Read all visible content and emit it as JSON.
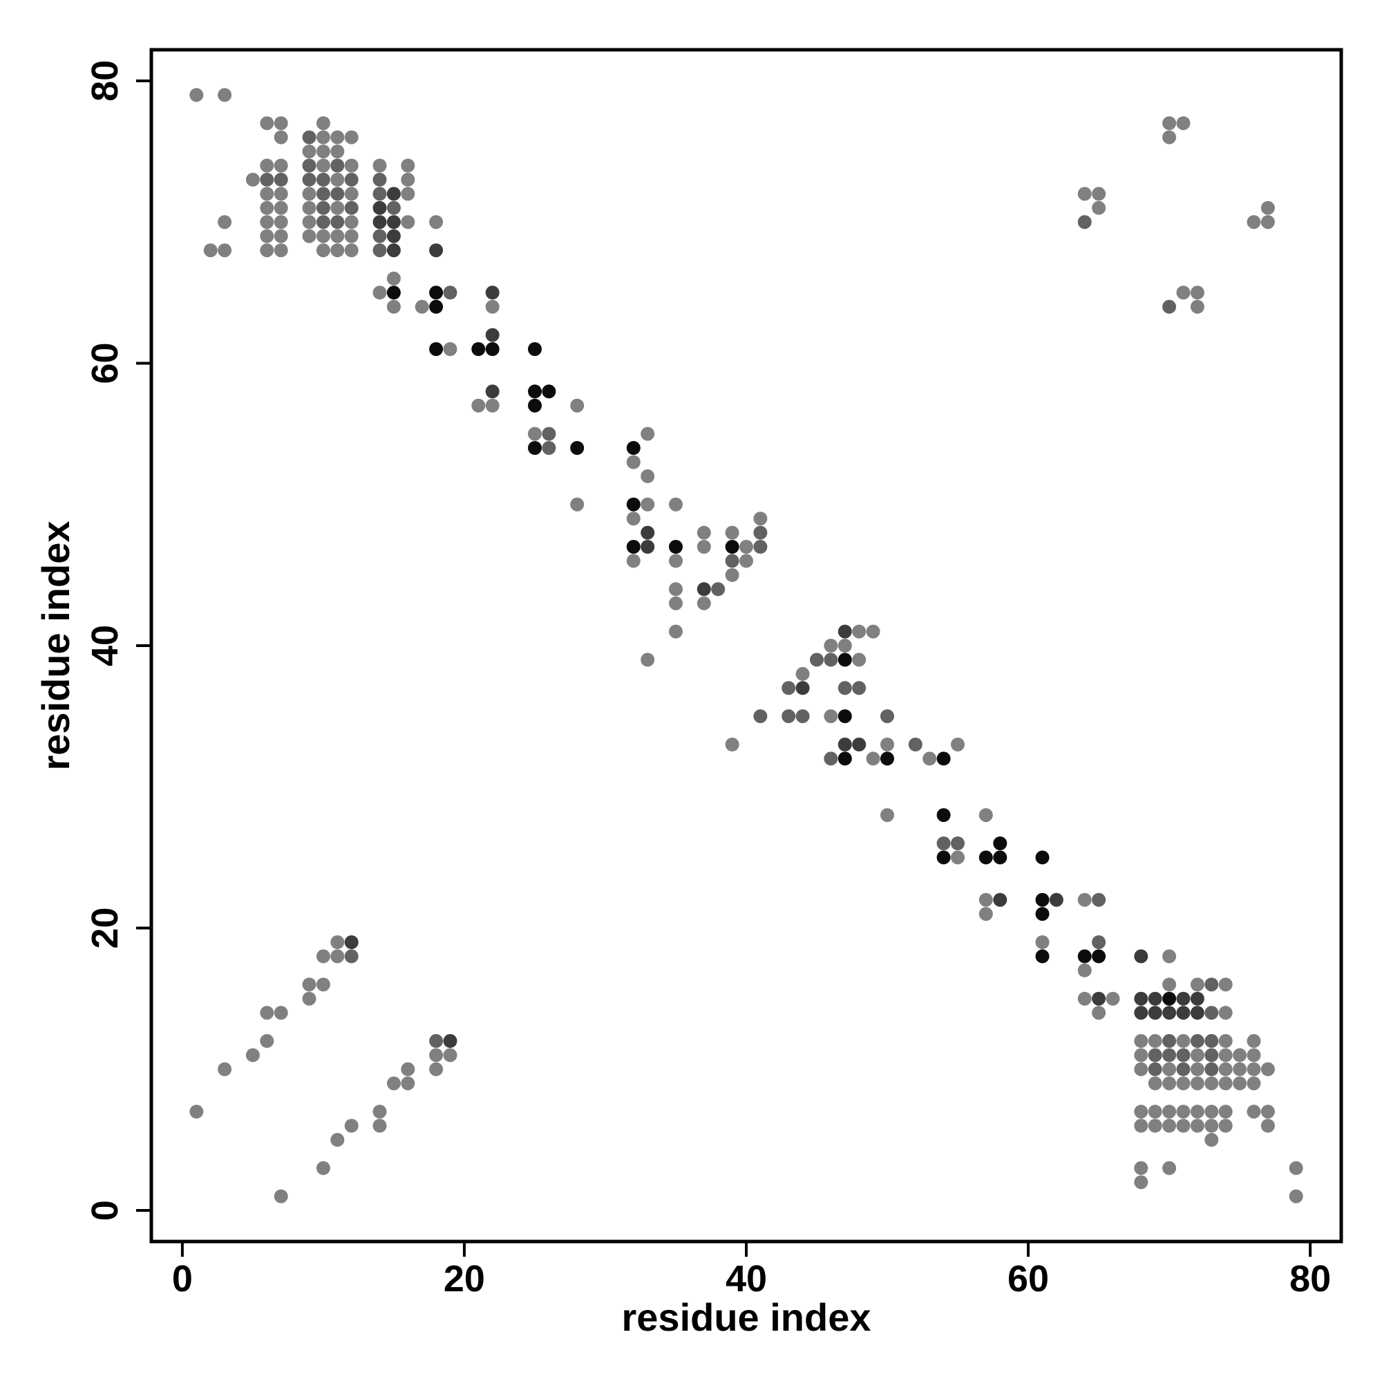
{
  "chart_data": {
    "type": "scatter",
    "title": "",
    "xlabel": "residue index",
    "ylabel": "residue index",
    "xlim": [
      -2.2,
      82.2
    ],
    "ylim": [
      -2.2,
      82.2
    ],
    "xticks": [
      0,
      20,
      40,
      60,
      80
    ],
    "yticks": [
      0,
      20,
      40,
      60,
      80
    ],
    "xtick_labels": [
      "0",
      "20",
      "40",
      "60",
      "80"
    ],
    "ytick_labels": [
      "0",
      "20",
      "40",
      "60",
      "80"
    ],
    "grid": false,
    "legend": "none",
    "marker_colors": {
      "light": "#808080",
      "medium": "#626262",
      "dark": "#3c3c3c",
      "black": "#0c0c0c"
    },
    "points": [
      [
        1,
        79,
        "light"
      ],
      [
        3,
        79,
        "light"
      ],
      [
        6,
        77,
        "light"
      ],
      [
        7,
        77,
        "light"
      ],
      [
        7,
        76,
        "light"
      ],
      [
        10,
        77,
        "light"
      ],
      [
        9,
        76,
        "medium"
      ],
      [
        10,
        76,
        "light"
      ],
      [
        11,
        76,
        "light"
      ],
      [
        12,
        76,
        "light"
      ],
      [
        9,
        75,
        "light"
      ],
      [
        10,
        75,
        "light"
      ],
      [
        11,
        75,
        "light"
      ],
      [
        6,
        74,
        "light"
      ],
      [
        7,
        74,
        "light"
      ],
      [
        9,
        74,
        "medium"
      ],
      [
        10,
        74,
        "light"
      ],
      [
        11,
        74,
        "medium"
      ],
      [
        12,
        74,
        "light"
      ],
      [
        14,
        74,
        "light"
      ],
      [
        16,
        74,
        "light"
      ],
      [
        5,
        73,
        "light"
      ],
      [
        6,
        73,
        "medium"
      ],
      [
        7,
        73,
        "medium"
      ],
      [
        9,
        73,
        "medium"
      ],
      [
        10,
        73,
        "medium"
      ],
      [
        11,
        73,
        "light"
      ],
      [
        12,
        73,
        "medium"
      ],
      [
        14,
        73,
        "medium"
      ],
      [
        16,
        73,
        "light"
      ],
      [
        6,
        72,
        "light"
      ],
      [
        7,
        72,
        "light"
      ],
      [
        9,
        72,
        "light"
      ],
      [
        10,
        72,
        "medium"
      ],
      [
        11,
        72,
        "medium"
      ],
      [
        12,
        72,
        "light"
      ],
      [
        14,
        72,
        "medium"
      ],
      [
        15,
        72,
        "dark"
      ],
      [
        16,
        72,
        "light"
      ],
      [
        6,
        71,
        "light"
      ],
      [
        7,
        71,
        "light"
      ],
      [
        9,
        71,
        "light"
      ],
      [
        10,
        71,
        "medium"
      ],
      [
        11,
        71,
        "light"
      ],
      [
        12,
        71,
        "medium"
      ],
      [
        14,
        71,
        "dark"
      ],
      [
        15,
        71,
        "medium"
      ],
      [
        3,
        70,
        "light"
      ],
      [
        6,
        70,
        "light"
      ],
      [
        7,
        70,
        "light"
      ],
      [
        9,
        70,
        "light"
      ],
      [
        10,
        70,
        "medium"
      ],
      [
        11,
        70,
        "medium"
      ],
      [
        12,
        70,
        "light"
      ],
      [
        14,
        70,
        "dark"
      ],
      [
        15,
        70,
        "dark"
      ],
      [
        16,
        70,
        "light"
      ],
      [
        18,
        70,
        "light"
      ],
      [
        6,
        69,
        "light"
      ],
      [
        7,
        69,
        "light"
      ],
      [
        9,
        69,
        "light"
      ],
      [
        10,
        69,
        "light"
      ],
      [
        11,
        69,
        "light"
      ],
      [
        12,
        69,
        "light"
      ],
      [
        14,
        69,
        "medium"
      ],
      [
        15,
        69,
        "dark"
      ],
      [
        2,
        68,
        "light"
      ],
      [
        3,
        68,
        "light"
      ],
      [
        6,
        68,
        "light"
      ],
      [
        7,
        68,
        "light"
      ],
      [
        10,
        68,
        "light"
      ],
      [
        11,
        68,
        "light"
      ],
      [
        12,
        68,
        "light"
      ],
      [
        14,
        68,
        "medium"
      ],
      [
        15,
        68,
        "dark"
      ],
      [
        18,
        68,
        "dark"
      ],
      [
        15,
        66,
        "light"
      ],
      [
        14,
        65,
        "light"
      ],
      [
        15,
        65,
        "black"
      ],
      [
        18,
        65,
        "black"
      ],
      [
        19,
        65,
        "medium"
      ],
      [
        22,
        65,
        "dark"
      ],
      [
        15,
        64,
        "light"
      ],
      [
        17,
        64,
        "light"
      ],
      [
        18,
        64,
        "black"
      ],
      [
        22,
        64,
        "light"
      ],
      [
        22,
        62,
        "dark"
      ],
      [
        18,
        61,
        "black"
      ],
      [
        19,
        61,
        "light"
      ],
      [
        21,
        61,
        "black"
      ],
      [
        22,
        61,
        "black"
      ],
      [
        25,
        61,
        "black"
      ],
      [
        22,
        58,
        "dark"
      ],
      [
        25,
        58,
        "black"
      ],
      [
        26,
        58,
        "black"
      ],
      [
        21,
        57,
        "light"
      ],
      [
        22,
        57,
        "light"
      ],
      [
        25,
        57,
        "black"
      ],
      [
        28,
        57,
        "light"
      ],
      [
        25,
        55,
        "light"
      ],
      [
        26,
        55,
        "medium"
      ],
      [
        33,
        55,
        "light"
      ],
      [
        25,
        54,
        "black"
      ],
      [
        26,
        54,
        "medium"
      ],
      [
        28,
        54,
        "black"
      ],
      [
        32,
        54,
        "black"
      ],
      [
        32,
        53,
        "light"
      ],
      [
        33,
        52,
        "light"
      ],
      [
        28,
        50,
        "light"
      ],
      [
        32,
        50,
        "black"
      ],
      [
        33,
        50,
        "light"
      ],
      [
        35,
        50,
        "light"
      ],
      [
        32,
        49,
        "light"
      ],
      [
        41,
        49,
        "light"
      ],
      [
        33,
        48,
        "dark"
      ],
      [
        37,
        48,
        "light"
      ],
      [
        39,
        48,
        "light"
      ],
      [
        41,
        48,
        "medium"
      ],
      [
        32,
        47,
        "black"
      ],
      [
        33,
        47,
        "dark"
      ],
      [
        35,
        47,
        "black"
      ],
      [
        37,
        47,
        "light"
      ],
      [
        39,
        47,
        "black"
      ],
      [
        40,
        47,
        "light"
      ],
      [
        41,
        47,
        "medium"
      ],
      [
        32,
        46,
        "light"
      ],
      [
        35,
        46,
        "light"
      ],
      [
        39,
        46,
        "medium"
      ],
      [
        40,
        46,
        "light"
      ],
      [
        39,
        45,
        "light"
      ],
      [
        35,
        44,
        "light"
      ],
      [
        37,
        44,
        "dark"
      ],
      [
        38,
        44,
        "medium"
      ],
      [
        35,
        43,
        "light"
      ],
      [
        37,
        43,
        "light"
      ],
      [
        35,
        41,
        "light"
      ],
      [
        47,
        41,
        "dark"
      ],
      [
        48,
        41,
        "light"
      ],
      [
        49,
        41,
        "light"
      ],
      [
        46,
        40,
        "light"
      ],
      [
        47,
        40,
        "light"
      ],
      [
        33,
        39,
        "light"
      ],
      [
        45,
        39,
        "medium"
      ],
      [
        46,
        39,
        "medium"
      ],
      [
        47,
        39,
        "black"
      ],
      [
        48,
        39,
        "light"
      ],
      [
        44,
        38,
        "light"
      ],
      [
        43,
        37,
        "medium"
      ],
      [
        44,
        37,
        "dark"
      ],
      [
        47,
        37,
        "medium"
      ],
      [
        48,
        37,
        "medium"
      ],
      [
        41,
        35,
        "medium"
      ],
      [
        43,
        35,
        "medium"
      ],
      [
        44,
        35,
        "medium"
      ],
      [
        46,
        35,
        "light"
      ],
      [
        47,
        35,
        "black"
      ],
      [
        50,
        35,
        "medium"
      ],
      [
        39,
        33,
        "light"
      ],
      [
        47,
        33,
        "dark"
      ],
      [
        48,
        33,
        "dark"
      ],
      [
        50,
        33,
        "light"
      ],
      [
        52,
        33,
        "medium"
      ],
      [
        55,
        33,
        "light"
      ],
      [
        46,
        32,
        "medium"
      ],
      [
        47,
        32,
        "black"
      ],
      [
        49,
        32,
        "light"
      ],
      [
        50,
        32,
        "black"
      ],
      [
        53,
        32,
        "light"
      ],
      [
        54,
        32,
        "black"
      ],
      [
        50,
        28,
        "light"
      ],
      [
        54,
        28,
        "black"
      ],
      [
        57,
        28,
        "light"
      ],
      [
        54,
        26,
        "medium"
      ],
      [
        55,
        26,
        "medium"
      ],
      [
        58,
        26,
        "black"
      ],
      [
        54,
        25,
        "black"
      ],
      [
        55,
        25,
        "light"
      ],
      [
        57,
        25,
        "black"
      ],
      [
        58,
        25,
        "black"
      ],
      [
        61,
        25,
        "black"
      ],
      [
        57,
        22,
        "light"
      ],
      [
        58,
        22,
        "dark"
      ],
      [
        61,
        22,
        "black"
      ],
      [
        62,
        22,
        "dark"
      ],
      [
        64,
        22,
        "light"
      ],
      [
        65,
        22,
        "medium"
      ],
      [
        57,
        21,
        "light"
      ],
      [
        61,
        21,
        "black"
      ],
      [
        61,
        19,
        "light"
      ],
      [
        65,
        19,
        "medium"
      ],
      [
        61,
        18,
        "black"
      ],
      [
        64,
        18,
        "black"
      ],
      [
        65,
        18,
        "black"
      ],
      [
        68,
        18,
        "dark"
      ],
      [
        70,
        18,
        "light"
      ],
      [
        64,
        17,
        "light"
      ],
      [
        70,
        16,
        "light"
      ],
      [
        72,
        16,
        "light"
      ],
      [
        73,
        16,
        "medium"
      ],
      [
        74,
        16,
        "light"
      ],
      [
        64,
        15,
        "light"
      ],
      [
        65,
        15,
        "dark"
      ],
      [
        66,
        15,
        "light"
      ],
      [
        68,
        15,
        "dark"
      ],
      [
        69,
        15,
        "dark"
      ],
      [
        70,
        15,
        "black"
      ],
      [
        71,
        15,
        "dark"
      ],
      [
        72,
        15,
        "dark"
      ],
      [
        65,
        14,
        "light"
      ],
      [
        68,
        14,
        "dark"
      ],
      [
        69,
        14,
        "dark"
      ],
      [
        70,
        14,
        "dark"
      ],
      [
        71,
        14,
        "dark"
      ],
      [
        72,
        14,
        "dark"
      ],
      [
        73,
        14,
        "medium"
      ],
      [
        74,
        14,
        "light"
      ],
      [
        68,
        12,
        "light"
      ],
      [
        69,
        12,
        "light"
      ],
      [
        70,
        12,
        "medium"
      ],
      [
        71,
        12,
        "light"
      ],
      [
        72,
        12,
        "medium"
      ],
      [
        73,
        12,
        "medium"
      ],
      [
        74,
        12,
        "light"
      ],
      [
        76,
        12,
        "light"
      ],
      [
        68,
        11,
        "light"
      ],
      [
        69,
        11,
        "medium"
      ],
      [
        70,
        11,
        "medium"
      ],
      [
        71,
        11,
        "medium"
      ],
      [
        72,
        11,
        "light"
      ],
      [
        73,
        11,
        "medium"
      ],
      [
        74,
        11,
        "light"
      ],
      [
        75,
        11,
        "light"
      ],
      [
        76,
        11,
        "light"
      ],
      [
        68,
        10,
        "light"
      ],
      [
        69,
        10,
        "medium"
      ],
      [
        70,
        10,
        "light"
      ],
      [
        71,
        10,
        "medium"
      ],
      [
        72,
        10,
        "light"
      ],
      [
        73,
        10,
        "medium"
      ],
      [
        74,
        10,
        "light"
      ],
      [
        75,
        10,
        "light"
      ],
      [
        76,
        10,
        "light"
      ],
      [
        77,
        10,
        "light"
      ],
      [
        69,
        9,
        "light"
      ],
      [
        70,
        9,
        "light"
      ],
      [
        71,
        9,
        "light"
      ],
      [
        72,
        9,
        "light"
      ],
      [
        73,
        9,
        "light"
      ],
      [
        74,
        9,
        "light"
      ],
      [
        75,
        9,
        "light"
      ],
      [
        76,
        9,
        "light"
      ],
      [
        68,
        7,
        "light"
      ],
      [
        69,
        7,
        "light"
      ],
      [
        70,
        7,
        "light"
      ],
      [
        71,
        7,
        "light"
      ],
      [
        72,
        7,
        "light"
      ],
      [
        73,
        7,
        "light"
      ],
      [
        74,
        7,
        "light"
      ],
      [
        76,
        7,
        "light"
      ],
      [
        77,
        7,
        "light"
      ],
      [
        68,
        6,
        "light"
      ],
      [
        69,
        6,
        "light"
      ],
      [
        70,
        6,
        "light"
      ],
      [
        71,
        6,
        "light"
      ],
      [
        72,
        6,
        "light"
      ],
      [
        73,
        6,
        "light"
      ],
      [
        74,
        6,
        "light"
      ],
      [
        77,
        6,
        "light"
      ],
      [
        73,
        5,
        "light"
      ],
      [
        68,
        3,
        "light"
      ],
      [
        70,
        3,
        "light"
      ],
      [
        79,
        3,
        "light"
      ],
      [
        68,
        2,
        "light"
      ],
      [
        79,
        1,
        "light"
      ],
      [
        70,
        77,
        "light"
      ],
      [
        71,
        77,
        "light"
      ],
      [
        70,
        76,
        "light"
      ],
      [
        64,
        72,
        "light"
      ],
      [
        65,
        72,
        "light"
      ],
      [
        65,
        71,
        "light"
      ],
      [
        64,
        70,
        "medium"
      ],
      [
        77,
        71,
        "light"
      ],
      [
        76,
        70,
        "light"
      ],
      [
        77,
        70,
        "light"
      ],
      [
        71,
        65,
        "light"
      ],
      [
        72,
        65,
        "light"
      ],
      [
        70,
        64,
        "medium"
      ],
      [
        72,
        64,
        "light"
      ],
      [
        1,
        7,
        "light"
      ],
      [
        3,
        10,
        "light"
      ],
      [
        5,
        11,
        "light"
      ],
      [
        6,
        12,
        "light"
      ],
      [
        6,
        14,
        "light"
      ],
      [
        7,
        14,
        "light"
      ],
      [
        9,
        15,
        "light"
      ],
      [
        9,
        16,
        "light"
      ],
      [
        10,
        16,
        "light"
      ],
      [
        10,
        18,
        "light"
      ],
      [
        11,
        18,
        "light"
      ],
      [
        12,
        18,
        "medium"
      ],
      [
        11,
        19,
        "light"
      ],
      [
        12,
        19,
        "dark"
      ],
      [
        7,
        1,
        "light"
      ],
      [
        10,
        3,
        "light"
      ],
      [
        11,
        5,
        "light"
      ],
      [
        12,
        6,
        "light"
      ],
      [
        14,
        6,
        "light"
      ],
      [
        14,
        7,
        "light"
      ],
      [
        15,
        9,
        "light"
      ],
      [
        16,
        9,
        "light"
      ],
      [
        16,
        10,
        "light"
      ],
      [
        18,
        10,
        "light"
      ],
      [
        18,
        11,
        "light"
      ],
      [
        19,
        11,
        "light"
      ],
      [
        18,
        12,
        "medium"
      ],
      [
        19,
        12,
        "dark"
      ]
    ]
  }
}
